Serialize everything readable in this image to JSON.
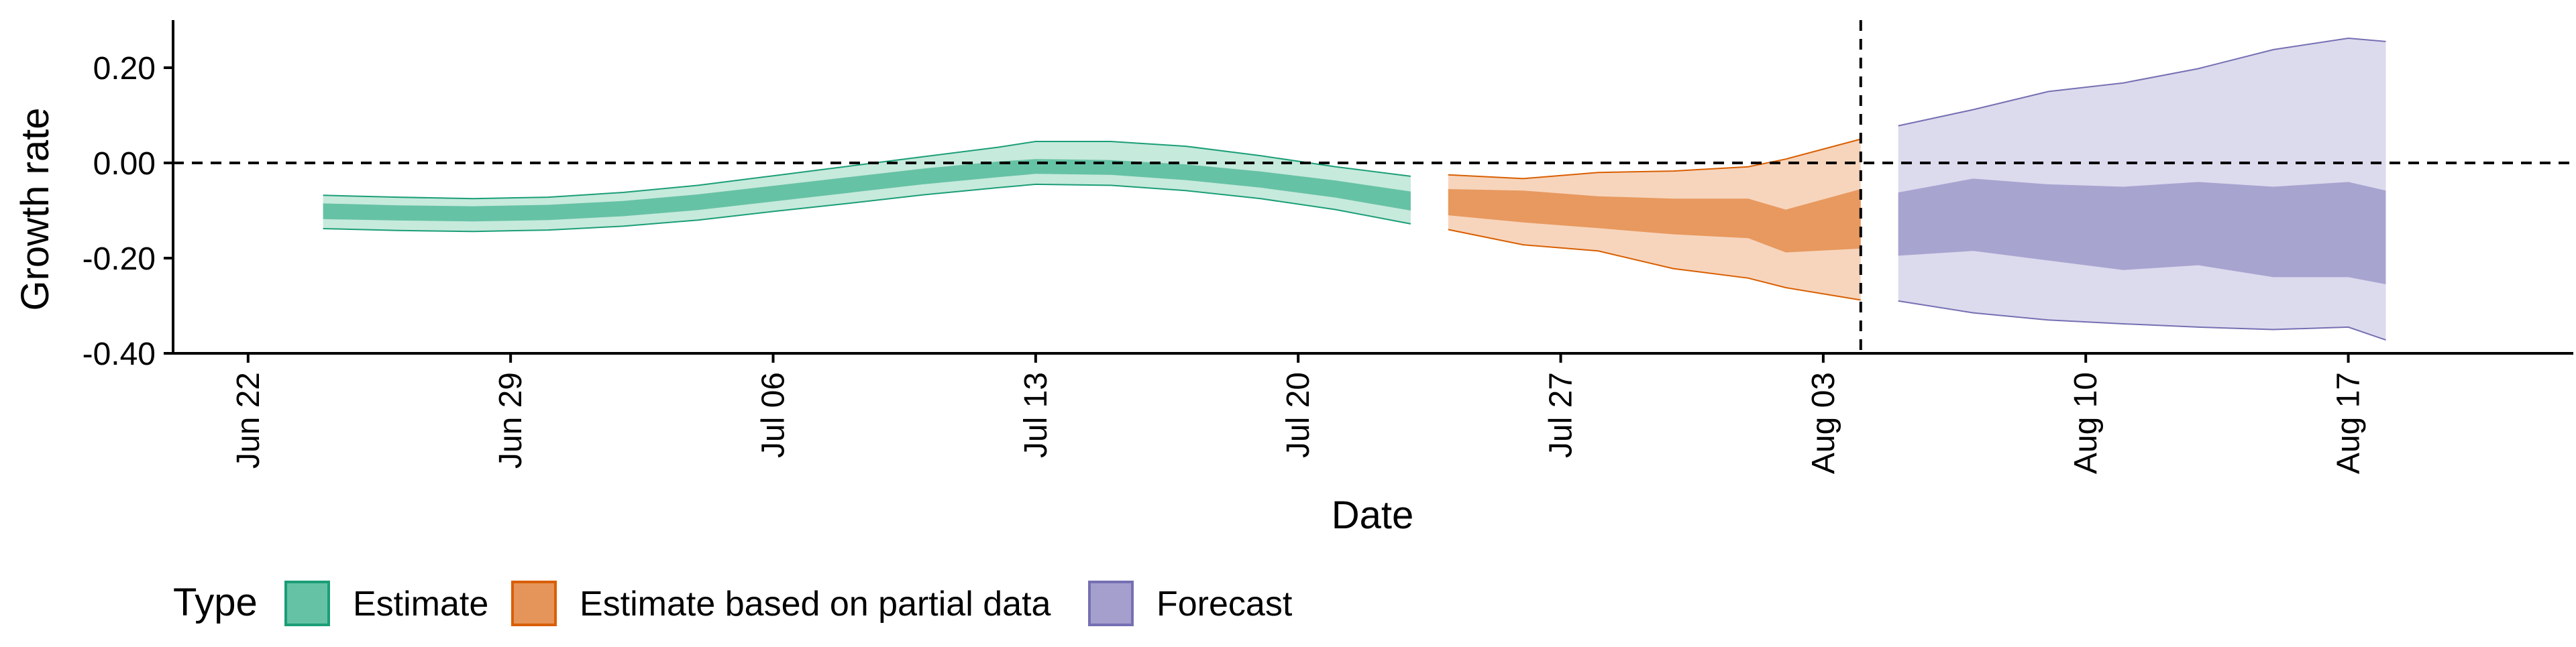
{
  "chart_data": {
    "type": "area",
    "xlabel": "Date",
    "ylabel": "Growth rate",
    "legend": {
      "title": "Type",
      "position": "bottom-left"
    },
    "x_domain": [
      "2020-06-20",
      "2020-08-23"
    ],
    "ylim": [
      -0.4,
      0.3
    ],
    "x_ticks": [
      {
        "date": "2020-06-22",
        "label": "Jun 22"
      },
      {
        "date": "2020-06-29",
        "label": "Jun 29"
      },
      {
        "date": "2020-07-06",
        "label": "Jul 06"
      },
      {
        "date": "2020-07-13",
        "label": "Jul 13"
      },
      {
        "date": "2020-07-20",
        "label": "Jul 20"
      },
      {
        "date": "2020-07-27",
        "label": "Jul 27"
      },
      {
        "date": "2020-08-03",
        "label": "Aug 03"
      },
      {
        "date": "2020-08-10",
        "label": "Aug 10"
      },
      {
        "date": "2020-08-17",
        "label": "Aug 17"
      }
    ],
    "y_ticks": [
      {
        "value": 0.2,
        "label": "0.20"
      },
      {
        "value": 0.0,
        "label": "0.00"
      },
      {
        "value": -0.2,
        "label": "-0.20"
      },
      {
        "value": -0.4,
        "label": "-0.40"
      }
    ],
    "reference_lines": {
      "y": 0.0,
      "x_date": "2020-08-04"
    },
    "series": [
      {
        "name": "Estimate",
        "fill": "#66c2a5",
        "stroke": "#1b9e77",
        "inner_fill": "#66c2a5",
        "outer_fill": "#c6eadc",
        "points": [
          {
            "date": "2020-06-24",
            "lo90": -0.138,
            "lo50": -0.118,
            "hi50": -0.085,
            "hi90": -0.068
          },
          {
            "date": "2020-06-26",
            "lo90": -0.142,
            "lo50": -0.121,
            "hi50": -0.089,
            "hi90": -0.072
          },
          {
            "date": "2020-06-28",
            "lo90": -0.144,
            "lo50": -0.123,
            "hi50": -0.091,
            "hi90": -0.075
          },
          {
            "date": "2020-06-30",
            "lo90": -0.141,
            "lo50": -0.12,
            "hi50": -0.088,
            "hi90": -0.072
          },
          {
            "date": "2020-07-02",
            "lo90": -0.133,
            "lo50": -0.112,
            "hi50": -0.08,
            "hi90": -0.062
          },
          {
            "date": "2020-07-04",
            "lo90": -0.12,
            "lo50": -0.099,
            "hi50": -0.066,
            "hi90": -0.047
          },
          {
            "date": "2020-07-06",
            "lo90": -0.102,
            "lo50": -0.081,
            "hi50": -0.048,
            "hi90": -0.027
          },
          {
            "date": "2020-07-08",
            "lo90": -0.085,
            "lo50": -0.063,
            "hi50": -0.03,
            "hi90": -0.007
          },
          {
            "date": "2020-07-10",
            "lo90": -0.067,
            "lo50": -0.045,
            "hi50": -0.012,
            "hi90": 0.013
          },
          {
            "date": "2020-07-12",
            "lo90": -0.052,
            "lo50": -0.03,
            "hi50": 0.003,
            "hi90": 0.033
          },
          {
            "date": "2020-07-13",
            "lo90": -0.045,
            "lo50": -0.023,
            "hi50": 0.008,
            "hi90": 0.045
          },
          {
            "date": "2020-07-15",
            "lo90": -0.047,
            "lo50": -0.025,
            "hi50": 0.006,
            "hi90": 0.045
          },
          {
            "date": "2020-07-17",
            "lo90": -0.058,
            "lo50": -0.036,
            "hi50": -0.003,
            "hi90": 0.035
          },
          {
            "date": "2020-07-19",
            "lo90": -0.075,
            "lo50": -0.052,
            "hi50": -0.018,
            "hi90": 0.015
          },
          {
            "date": "2020-07-21",
            "lo90": -0.098,
            "lo50": -0.073,
            "hi50": -0.037,
            "hi90": -0.008
          },
          {
            "date": "2020-07-23",
            "lo90": -0.128,
            "lo50": -0.1,
            "hi50": -0.06,
            "hi90": -0.028
          }
        ]
      },
      {
        "name": "Estimate based on partial data",
        "fill": "#e6955a",
        "stroke": "#d95f02",
        "inner_fill": "#e8995f",
        "outer_fill": "#f7d5bd",
        "points": [
          {
            "date": "2020-07-24",
            "lo90": -0.14,
            "lo50": -0.11,
            "hi50": -0.055,
            "hi90": -0.025
          },
          {
            "date": "2020-07-26",
            "lo90": -0.172,
            "lo50": -0.125,
            "hi50": -0.058,
            "hi90": -0.033
          },
          {
            "date": "2020-07-28",
            "lo90": -0.185,
            "lo50": -0.137,
            "hi50": -0.07,
            "hi90": -0.02
          },
          {
            "date": "2020-07-30",
            "lo90": -0.222,
            "lo50": -0.15,
            "hi50": -0.075,
            "hi90": -0.017
          },
          {
            "date": "2020-08-01",
            "lo90": -0.242,
            "lo50": -0.158,
            "hi50": -0.075,
            "hi90": -0.008
          },
          {
            "date": "2020-08-02",
            "lo90": -0.262,
            "lo50": -0.188,
            "hi50": -0.098,
            "hi90": 0.008
          },
          {
            "date": "2020-08-04",
            "lo90": -0.288,
            "lo50": -0.18,
            "hi50": -0.055,
            "hi90": 0.05
          }
        ]
      },
      {
        "name": "Forecast",
        "fill": "#a59fce",
        "stroke": "#7570b3",
        "inner_fill": "#a8a4d0",
        "outer_fill": "#dcdaed",
        "points": [
          {
            "date": "2020-08-05",
            "lo90": -0.29,
            "lo50": -0.195,
            "hi50": -0.062,
            "hi90": 0.078
          },
          {
            "date": "2020-08-07",
            "lo90": -0.315,
            "lo50": -0.185,
            "hi50": -0.033,
            "hi90": 0.112
          },
          {
            "date": "2020-08-09",
            "lo90": -0.33,
            "lo50": -0.205,
            "hi50": -0.045,
            "hi90": 0.15
          },
          {
            "date": "2020-08-11",
            "lo90": -0.338,
            "lo50": -0.225,
            "hi50": -0.05,
            "hi90": 0.168
          },
          {
            "date": "2020-08-13",
            "lo90": -0.345,
            "lo50": -0.215,
            "hi50": -0.04,
            "hi90": 0.198
          },
          {
            "date": "2020-08-15",
            "lo90": -0.35,
            "lo50": -0.24,
            "hi50": -0.05,
            "hi90": 0.238
          },
          {
            "date": "2020-08-17",
            "lo90": -0.345,
            "lo50": -0.24,
            "hi50": -0.04,
            "hi90": 0.262
          },
          {
            "date": "2020-08-18",
            "lo90": -0.372,
            "lo50": -0.255,
            "hi50": -0.058,
            "hi90": 0.255
          }
        ]
      }
    ]
  }
}
